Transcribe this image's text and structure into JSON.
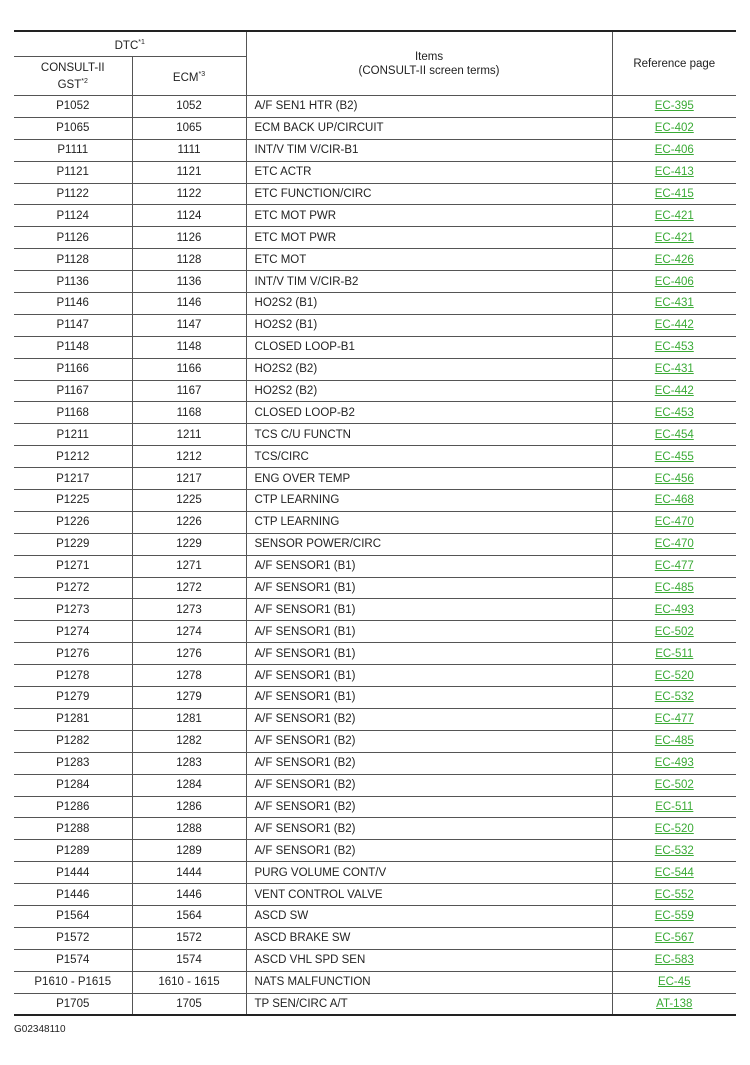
{
  "header": {
    "dtc": "DTC",
    "dtc_sup": "*1",
    "consult": "CONSULT-II",
    "gst": "GST",
    "gst_sup": "*2",
    "ecm": "ECM",
    "ecm_sup": "*3",
    "items": "Items",
    "items_sub": "(CONSULT-II screen terms)",
    "ref": "Reference page"
  },
  "link_color": "#3aaa35",
  "rows": [
    [
      "P1052",
      "1052",
      "A/F SEN1 HTR (B2)",
      "EC-395"
    ],
    [
      "P1065",
      "1065",
      "ECM BACK UP/CIRCUIT",
      "EC-402"
    ],
    [
      "P1111",
      "1111",
      "INT/V TIM V/CIR-B1",
      "EC-406"
    ],
    [
      "P1121",
      "1121",
      "ETC ACTR",
      "EC-413"
    ],
    [
      "P1122",
      "1122",
      "ETC FUNCTION/CIRC",
      "EC-415"
    ],
    [
      "P1124",
      "1124",
      "ETC MOT PWR",
      "EC-421"
    ],
    [
      "P1126",
      "1126",
      "ETC MOT PWR",
      "EC-421"
    ],
    [
      "P1128",
      "1128",
      "ETC MOT",
      "EC-426"
    ],
    [
      "P1136",
      "1136",
      "INT/V TIM V/CIR-B2",
      "EC-406"
    ],
    [
      "P1146",
      "1146",
      "HO2S2 (B1)",
      "EC-431"
    ],
    [
      "P1147",
      "1147",
      "HO2S2 (B1)",
      "EC-442"
    ],
    [
      "P1148",
      "1148",
      "CLOSED LOOP-B1",
      "EC-453"
    ],
    [
      "P1166",
      "1166",
      "HO2S2 (B2)",
      "EC-431"
    ],
    [
      "P1167",
      "1167",
      "HO2S2 (B2)",
      "EC-442"
    ],
    [
      "P1168",
      "1168",
      "CLOSED LOOP-B2",
      "EC-453"
    ],
    [
      "P1211",
      "1211",
      "TCS C/U FUNCTN",
      "EC-454"
    ],
    [
      "P1212",
      "1212",
      "TCS/CIRC",
      "EC-455"
    ],
    [
      "P1217",
      "1217",
      "ENG OVER TEMP",
      "EC-456"
    ],
    [
      "P1225",
      "1225",
      "CTP LEARNING",
      "EC-468"
    ],
    [
      "P1226",
      "1226",
      "CTP LEARNING",
      "EC-470"
    ],
    [
      "P1229",
      "1229",
      "SENSOR POWER/CIRC",
      "EC-470"
    ],
    [
      "P1271",
      "1271",
      "A/F SENSOR1 (B1)",
      "EC-477"
    ],
    [
      "P1272",
      "1272",
      "A/F SENSOR1 (B1)",
      "EC-485"
    ],
    [
      "P1273",
      "1273",
      "A/F SENSOR1 (B1)",
      "EC-493"
    ],
    [
      "P1274",
      "1274",
      "A/F SENSOR1 (B1)",
      "EC-502"
    ],
    [
      "P1276",
      "1276",
      "A/F SENSOR1 (B1)",
      "EC-511"
    ],
    [
      "P1278",
      "1278",
      "A/F SENSOR1 (B1)",
      "EC-520"
    ],
    [
      "P1279",
      "1279",
      "A/F SENSOR1 (B1)",
      "EC-532"
    ],
    [
      "P1281",
      "1281",
      "A/F SENSOR1 (B2)",
      "EC-477"
    ],
    [
      "P1282",
      "1282",
      "A/F SENSOR1 (B2)",
      "EC-485"
    ],
    [
      "P1283",
      "1283",
      "A/F SENSOR1 (B2)",
      "EC-493"
    ],
    [
      "P1284",
      "1284",
      "A/F SENSOR1 (B2)",
      "EC-502"
    ],
    [
      "P1286",
      "1286",
      "A/F SENSOR1 (B2)",
      "EC-511"
    ],
    [
      "P1288",
      "1288",
      "A/F SENSOR1 (B2)",
      "EC-520"
    ],
    [
      "P1289",
      "1289",
      "A/F SENSOR1 (B2)",
      "EC-532"
    ],
    [
      "P1444",
      "1444",
      "PURG VOLUME CONT/V",
      "EC-544"
    ],
    [
      "P1446",
      "1446",
      "VENT CONTROL VALVE",
      "EC-552"
    ],
    [
      "P1564",
      "1564",
      "ASCD SW",
      "EC-559"
    ],
    [
      "P1572",
      "1572",
      "ASCD BRAKE SW",
      "EC-567"
    ],
    [
      "P1574",
      "1574",
      "ASCD VHL SPD SEN",
      "EC-583"
    ],
    [
      "P1610 - P1615",
      "1610 - 1615",
      "NATS MALFUNCTION",
      "EC-45"
    ],
    [
      "P1705",
      "1705",
      "TP SEN/CIRC A/T",
      "AT-138"
    ]
  ],
  "figure_code": "G02348110"
}
